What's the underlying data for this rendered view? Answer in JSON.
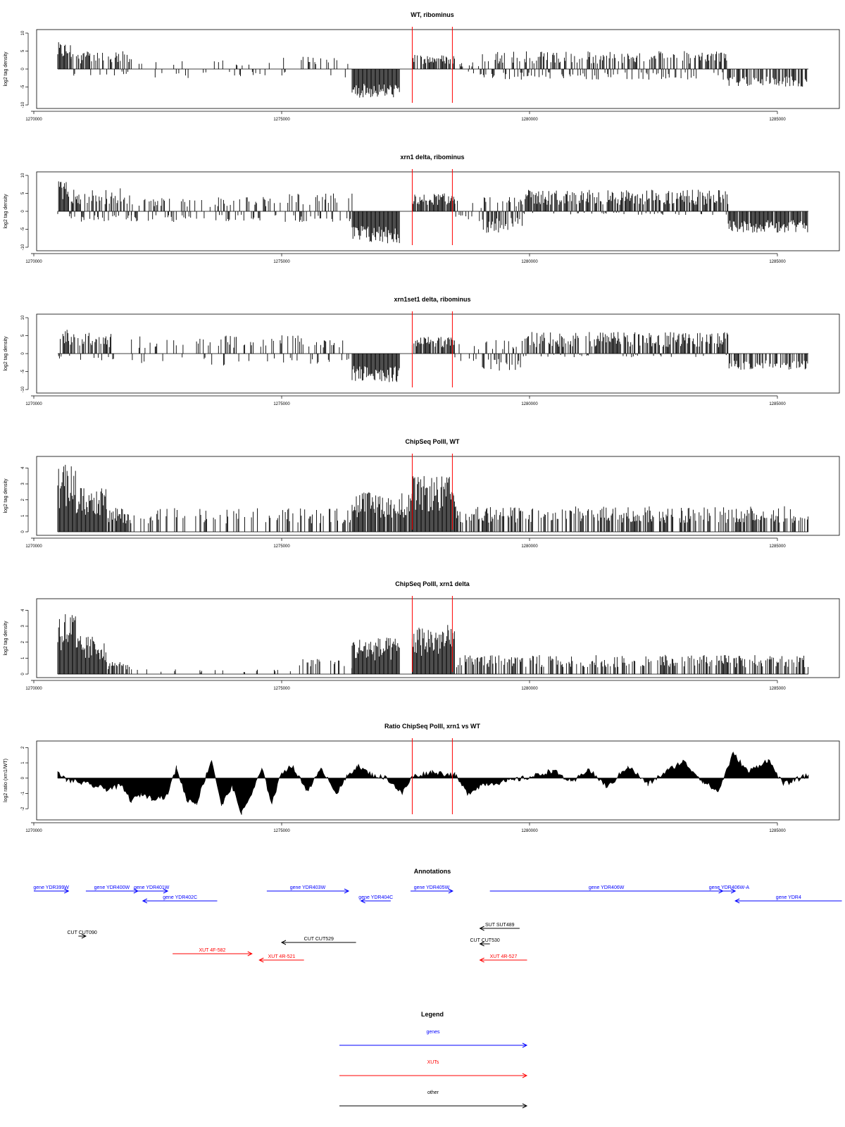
{
  "chart_data": {
    "x_range": [
      1270000,
      1285500
    ],
    "x_ticks": [
      "1270000",
      "1275000",
      "1280000",
      "1285000"
    ],
    "red_markers": [
      1277600,
      1278400
    ],
    "panels": [
      {
        "title": "WT, ribominus",
        "type": "bar",
        "ylabel": "log2 tag density",
        "ylim": [
          -10,
          10
        ],
        "y_ticks": [
          "-10",
          "-5",
          "0",
          "5",
          "10"
        ],
        "segments": [
          {
            "x": [
              1270530,
              1270800
            ],
            "y": [
              0,
              7.5
            ],
            "density": 0.9
          },
          {
            "x": [
              1270800,
              1272000
            ],
            "y": [
              -2,
              5
            ],
            "density": 0.6
          },
          {
            "x": [
              1272000,
              1275000
            ],
            "y": [
              -2.5,
              2.5
            ],
            "density": 0.15
          },
          {
            "x": [
              1275000,
              1276400
            ],
            "y": [
              -2.5,
              3.5
            ],
            "density": 0.2
          },
          {
            "x": [
              1276400,
              1277350
            ],
            "y": [
              -8,
              -2
            ],
            "density": 1.0
          },
          {
            "x": [
              1277600,
              1278450
            ],
            "y": [
              0,
              4
            ],
            "density": 0.7
          },
          {
            "x": [
              1278450,
              1279000
            ],
            "y": [
              -2,
              2
            ],
            "density": 0.3
          },
          {
            "x": [
              1279000,
              1283900
            ],
            "y": [
              -3,
              5
            ],
            "density": 0.75
          },
          {
            "x": [
              1283900,
              1285500
            ],
            "y": [
              -5,
              -0.5
            ],
            "density": 0.7
          }
        ]
      },
      {
        "title": "xrn1 delta, ribominus",
        "type": "bar",
        "ylabel": "log2 tag density",
        "ylim": [
          -10,
          10
        ],
        "y_ticks": [
          "-10",
          "-5",
          "0",
          "5",
          "10"
        ],
        "segments": [
          {
            "x": [
              1270530,
              1270800
            ],
            "y": [
              -2,
              8.5
            ],
            "density": 1.0
          },
          {
            "x": [
              1270800,
              1272000
            ],
            "y": [
              -3,
              6.5
            ],
            "density": 0.85
          },
          {
            "x": [
              1272000,
              1275000
            ],
            "y": [
              -3,
              4
            ],
            "density": 0.5
          },
          {
            "x": [
              1275000,
              1276400
            ],
            "y": [
              -3,
              5
            ],
            "density": 0.5
          },
          {
            "x": [
              1276400,
              1277350
            ],
            "y": [
              -9,
              -1
            ],
            "density": 1.0
          },
          {
            "x": [
              1277600,
              1278450
            ],
            "y": [
              0,
              5
            ],
            "density": 0.95
          },
          {
            "x": [
              1278450,
              1279000
            ],
            "y": [
              -3,
              3
            ],
            "density": 0.4
          },
          {
            "x": [
              1279000,
              1279800
            ],
            "y": [
              -6,
              4
            ],
            "density": 0.8
          },
          {
            "x": [
              1279800,
              1283900
            ],
            "y": [
              -1,
              6
            ],
            "density": 0.9
          },
          {
            "x": [
              1283900,
              1285500
            ],
            "y": [
              -6,
              -0.5
            ],
            "density": 0.95
          }
        ]
      },
      {
        "title": "xrn1set1 delta, ribominus",
        "type": "bar",
        "ylabel": "log2 tag density",
        "ylim": [
          -10,
          10
        ],
        "y_ticks": [
          "-10",
          "-5",
          "0",
          "5",
          "10"
        ],
        "segments": [
          {
            "x": [
              1270530,
              1270800
            ],
            "y": [
              -2,
              7
            ],
            "density": 0.9
          },
          {
            "x": [
              1270800,
              1271700
            ],
            "y": [
              -2,
              6
            ],
            "density": 0.6
          },
          {
            "x": [
              1272000,
              1275000
            ],
            "y": [
              -3.5,
              5
            ],
            "density": 0.3
          },
          {
            "x": [
              1275000,
              1276400
            ],
            "y": [
              -3,
              5.5
            ],
            "density": 0.35
          },
          {
            "x": [
              1276400,
              1277350
            ],
            "y": [
              -8,
              -1
            ],
            "density": 1.0
          },
          {
            "x": [
              1277600,
              1278450
            ],
            "y": [
              0,
              5
            ],
            "density": 0.85
          },
          {
            "x": [
              1278450,
              1279000
            ],
            "y": [
              -3,
              3
            ],
            "density": 0.3
          },
          {
            "x": [
              1279000,
              1279800
            ],
            "y": [
              -5,
              4
            ],
            "density": 0.6
          },
          {
            "x": [
              1279800,
              1283900
            ],
            "y": [
              -1,
              6
            ],
            "density": 0.75
          },
          {
            "x": [
              1283900,
              1285500
            ],
            "y": [
              -4.5,
              -0.5
            ],
            "density": 0.6
          }
        ]
      },
      {
        "title": "ChipSeq PolII, WT",
        "type": "bar",
        "ylabel": "log2 tag density",
        "ylim": [
          0,
          4.5
        ],
        "y_ticks": [
          "0",
          "1",
          "2",
          "3",
          "4"
        ],
        "segments": [
          {
            "x": [
              1270530,
              1270900
            ],
            "y": [
              0,
              4.2
            ],
            "density": 1.0
          },
          {
            "x": [
              1270900,
              1271500
            ],
            "y": [
              0,
              2.8
            ],
            "density": 1.0
          },
          {
            "x": [
              1271500,
              1272000
            ],
            "y": [
              0,
              1.5
            ],
            "density": 0.8
          },
          {
            "x": [
              1272000,
              1276400
            ],
            "y": [
              0,
              1.5
            ],
            "density": 0.3
          },
          {
            "x": [
              1276400,
              1277600
            ],
            "y": [
              0,
              2.5
            ],
            "density": 0.9
          },
          {
            "x": [
              1277600,
              1278450
            ],
            "y": [
              0,
              3.5
            ],
            "density": 1.0
          },
          {
            "x": [
              1278450,
              1285500
            ],
            "y": [
              0,
              1.6
            ],
            "density": 0.55
          }
        ]
      },
      {
        "title": "ChipSeq PolII, xrn1 delta",
        "type": "bar",
        "ylabel": "log2 tag density",
        "ylim": [
          0,
          4.5
        ],
        "y_ticks": [
          "0",
          "1",
          "2",
          "3",
          "4"
        ],
        "segments": [
          {
            "x": [
              1270530,
              1270900
            ],
            "y": [
              0,
              4.0
            ],
            "density": 1.0
          },
          {
            "x": [
              1270900,
              1271500
            ],
            "y": [
              0,
              2.4
            ],
            "density": 1.0
          },
          {
            "x": [
              1271500,
              1272000
            ],
            "y": [
              0,
              0.8
            ],
            "density": 0.7
          },
          {
            "x": [
              1272000,
              1275300
            ],
            "y": [
              0,
              0.3
            ],
            "density": 0.1
          },
          {
            "x": [
              1275300,
              1276400
            ],
            "y": [
              0,
              1.0
            ],
            "density": 0.3
          },
          {
            "x": [
              1276400,
              1277350
            ],
            "y": [
              0,
              2.3
            ],
            "density": 1.0
          },
          {
            "x": [
              1277600,
              1278450
            ],
            "y": [
              0,
              3.1
            ],
            "density": 1.0
          },
          {
            "x": [
              1278450,
              1285500
            ],
            "y": [
              0,
              1.2
            ],
            "density": 0.55
          }
        ]
      },
      {
        "title": "Ratio ChipSeq PolII, xrn1 vs WT",
        "type": "area",
        "ylabel": "log2 ratio (xrn1/WT)",
        "ylim": [
          -2.5,
          2.2
        ],
        "y_ticks": [
          "-2",
          "-1",
          "0",
          "1",
          "2"
        ],
        "profile": [
          [
            1270530,
            0.3
          ],
          [
            1270700,
            -0.1
          ],
          [
            1271000,
            -0.3
          ],
          [
            1271500,
            -0.7
          ],
          [
            1271800,
            -0.5
          ],
          [
            1272000,
            -1.5
          ],
          [
            1272200,
            -1.0
          ],
          [
            1272400,
            -1.3
          ],
          [
            1272700,
            -1.2
          ],
          [
            1272900,
            0.7
          ],
          [
            1273100,
            -1.4
          ],
          [
            1273300,
            -1.6
          ],
          [
            1273600,
            1.2
          ],
          [
            1273800,
            -1.8
          ],
          [
            1274000,
            -0.5
          ],
          [
            1274200,
            -2.3
          ],
          [
            1274400,
            -1.0
          ],
          [
            1274600,
            0.6
          ],
          [
            1274800,
            -1.6
          ],
          [
            1275000,
            0.4
          ],
          [
            1275200,
            0.8
          ],
          [
            1275500,
            -0.8
          ],
          [
            1275800,
            0.6
          ],
          [
            1276100,
            -1.0
          ],
          [
            1276300,
            0.1
          ],
          [
            1276500,
            0.8
          ],
          [
            1276800,
            0.2
          ],
          [
            1277100,
            0.0
          ],
          [
            1277400,
            -1.0
          ],
          [
            1277600,
            0.1
          ],
          [
            1278000,
            0.4
          ],
          [
            1278450,
            0.2
          ],
          [
            1278700,
            -1.0
          ],
          [
            1279000,
            -0.4
          ],
          [
            1279500,
            -0.2
          ],
          [
            1280000,
            0.1
          ],
          [
            1280400,
            0.5
          ],
          [
            1280800,
            -0.3
          ],
          [
            1281100,
            0.6
          ],
          [
            1281500,
            -0.6
          ],
          [
            1281900,
            0.8
          ],
          [
            1282300,
            -0.4
          ],
          [
            1282700,
            0.5
          ],
          [
            1283000,
            1.1
          ],
          [
            1283400,
            -0.2
          ],
          [
            1283700,
            -0.9
          ],
          [
            1284000,
            1.6
          ],
          [
            1284300,
            0.4
          ],
          [
            1284700,
            1.2
          ],
          [
            1285000,
            -0.4
          ],
          [
            1285500,
            0.2
          ]
        ]
      }
    ]
  },
  "annotations": {
    "title": "Annotations",
    "genes": [
      {
        "label": "gene YDR399W",
        "x0": 1270000,
        "x1": 1270700,
        "dir": "right"
      },
      {
        "label": "gene YDR400W",
        "x0": 1271050,
        "x1": 1272100,
        "dir": "right"
      },
      {
        "label": "gene YDR401W",
        "x0": 1272050,
        "x1": 1272700,
        "dir": "right"
      },
      {
        "label": "gene YDR402C",
        "x0": 1272200,
        "x1": 1273700,
        "dir": "left"
      },
      {
        "label": "gene YDR403W",
        "x0": 1274700,
        "x1": 1276350,
        "dir": "right"
      },
      {
        "label": "gene YDR404C",
        "x0": 1276600,
        "x1": 1277200,
        "dir": "left"
      },
      {
        "label": "gene YDR405W",
        "x0": 1277600,
        "x1": 1278450,
        "dir": "right"
      },
      {
        "label": "gene YDR406W",
        "x0": 1279200,
        "x1": 1283900,
        "dir": "right"
      },
      {
        "label": "gene YDR406W-A",
        "x0": 1283900,
        "x1": 1284150,
        "dir": "right"
      },
      {
        "label": "gene YDR4",
        "x0": 1284150,
        "x1": 1286300,
        "dir": "left"
      }
    ],
    "cuts": [
      {
        "label": "CUT CUT090",
        "x0": 1270900,
        "x1": 1271050,
        "dir": "right"
      },
      {
        "label": "CUT CUT529",
        "x0": 1275000,
        "x1": 1276500,
        "dir": "left"
      },
      {
        "label": "SUT SUT489",
        "x0": 1279000,
        "x1": 1279800,
        "dir": "left"
      },
      {
        "label": "CUT CUT530",
        "x0": 1279000,
        "x1": 1279200,
        "dir": "left"
      }
    ],
    "xuts": [
      {
        "label": "XUT 4F-582",
        "x0": 1272800,
        "x1": 1274400,
        "dir": "right"
      },
      {
        "label": "XUT 4R-521",
        "x0": 1274550,
        "x1": 1275450,
        "dir": "left"
      },
      {
        "label": "XUT 4R-527",
        "x0": 1279000,
        "x1": 1279950,
        "dir": "left"
      }
    ]
  },
  "legend": {
    "title": "Legend",
    "items": [
      {
        "label": "genes",
        "color": "#0000ff"
      },
      {
        "label": "XUTs",
        "color": "#ff0000"
      },
      {
        "label": "other",
        "color": "#000000"
      }
    ]
  },
  "colors": {
    "gene": "#0000ff",
    "xut": "#ff0000",
    "other": "#000000",
    "marker": "#ff0000"
  }
}
